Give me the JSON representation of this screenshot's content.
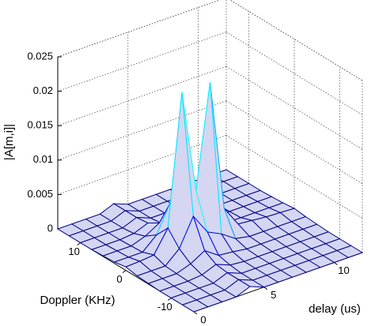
{
  "chart_data": {
    "type": "mesh",
    "zlabel": "|A[m,i]|",
    "ylabel": "Doppler (KHz)",
    "xlabel": "delay (us)",
    "x": [
      0,
      1,
      2,
      3,
      4,
      5,
      6,
      7,
      8,
      9,
      10,
      11,
      12
    ],
    "y": [
      -15,
      -12.5,
      -10,
      -7.5,
      -5,
      -2.5,
      0,
      2.5,
      5,
      7.5,
      10,
      12.5,
      15
    ],
    "z": [
      [
        0,
        0,
        0,
        0,
        0.0008,
        0,
        0,
        0,
        0,
        0,
        0,
        0,
        0
      ],
      [
        0,
        0,
        0,
        0,
        0.0008,
        0,
        0,
        0,
        0,
        0,
        0,
        0,
        0
      ],
      [
        0,
        0,
        0,
        0,
        0.0008,
        0,
        0,
        0,
        0,
        0,
        0,
        0,
        0
      ],
      [
        0,
        0,
        0,
        0.0002,
        0.001,
        0.0002,
        0,
        0,
        0,
        0,
        0,
        0,
        0
      ],
      [
        0.0001,
        0.0001,
        0.0001,
        0.0008,
        0.002,
        0.0006,
        0.0004,
        0.0001,
        0.0001,
        0.0001,
        0.0001,
        0.0001,
        0.0001
      ],
      [
        0.0002,
        0.0002,
        0.0002,
        0.002,
        0.006,
        0.003,
        0.002,
        0.0006,
        0.0002,
        0.0002,
        0.0002,
        0.0002,
        0.0002
      ],
      [
        0.0005,
        0.0006,
        0.0008,
        0.004,
        0.023,
        0.008,
        0.023,
        0.004,
        0.001,
        0.0008,
        0.0006,
        0.0005,
        0.0004
      ],
      [
        0.0002,
        0.0002,
        0.0002,
        0.002,
        0.006,
        0.003,
        0.002,
        0.0006,
        0.0002,
        0.0002,
        0.0002,
        0.0002,
        0.0002
      ],
      [
        0.0001,
        0.0001,
        0.0001,
        0.0008,
        0.002,
        0.0006,
        0.0004,
        0.0001,
        0.0001,
        0.0001,
        0.0001,
        0.0001,
        0.0001
      ],
      [
        0,
        0,
        0,
        0.0002,
        0.001,
        0.0002,
        0,
        0,
        0,
        0,
        0,
        0,
        0
      ],
      [
        0,
        0,
        0,
        0,
        0.0008,
        0,
        0,
        0,
        0,
        0,
        0,
        0,
        0
      ],
      [
        0,
        0,
        0,
        0,
        0.0008,
        0,
        0,
        0,
        0,
        0,
        0,
        0,
        0
      ],
      [
        0,
        0,
        0,
        0,
        0.0008,
        0,
        0,
        0,
        0,
        0,
        0,
        0,
        0
      ]
    ],
    "xlim": [
      0,
      12
    ],
    "ylim": [
      -15,
      15
    ],
    "zlim": [
      0,
      0.025
    ],
    "xticks": [
      0,
      5,
      10
    ],
    "yticks": [
      -10,
      0,
      10
    ],
    "zticks": [
      0,
      0.005,
      0.01,
      0.015,
      0.02,
      0.025
    ],
    "grid": true,
    "colormap": "jet"
  }
}
